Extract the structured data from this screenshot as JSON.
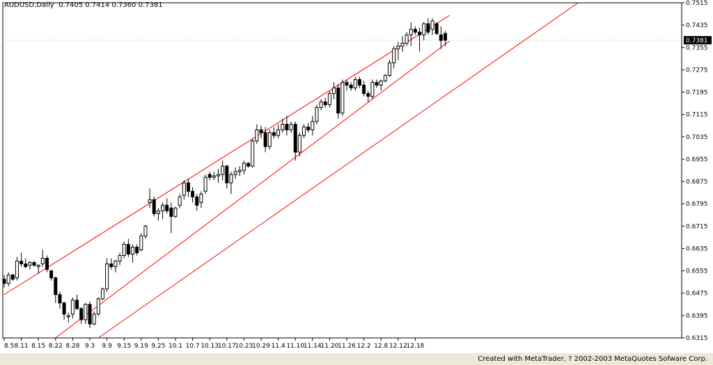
{
  "header": {
    "symbol": "AUDUSD,Daily",
    "ohlc": "0.7405 0.7414 0.7360 0.7381"
  },
  "footer": {
    "credit": "Created with MetaTrader, ? 2002-2003 MetaQuotes Sofware Corp."
  },
  "chart_data": {
    "type": "candlestick",
    "title": "AUDUSD,Daily",
    "current_price": "0.7381",
    "ylim": [
      0.6315,
      0.7515
    ],
    "y_ticks": [
      "0.7515",
      "0.7435",
      "0.7355",
      "0.7275",
      "0.7195",
      "0.7115",
      "0.7035",
      "0.6955",
      "0.6875",
      "0.6795",
      "0.6715",
      "0.6635",
      "0.6555",
      "0.6475",
      "0.6395",
      "0.6315"
    ],
    "x_ticks": [
      "8.5",
      "8.11",
      "8.15",
      "8.22",
      "8.28",
      "9.3",
      "9.9",
      "9.15",
      "9.19",
      "9.25",
      "10.1",
      "10.7",
      "10.13",
      "10.17",
      "10.23",
      "10.29",
      "11.4",
      "11.10",
      "11.14",
      "11.20",
      "11.26",
      "12.2",
      "12.8",
      "12.12",
      "12.18"
    ],
    "grid": false,
    "colors": {
      "bull": "#ffffff",
      "bear": "#000000",
      "channel": "#ff0000",
      "current_line": "#c0c0c0"
    },
    "candles": [
      [
        0.6525,
        0.654,
        0.6495,
        0.651
      ],
      [
        0.651,
        0.655,
        0.65,
        0.654
      ],
      [
        0.654,
        0.6545,
        0.652,
        0.6525
      ],
      [
        0.653,
        0.6605,
        0.652,
        0.659
      ],
      [
        0.659,
        0.662,
        0.657,
        0.658
      ],
      [
        0.658,
        0.66,
        0.6565,
        0.657
      ],
      [
        0.6575,
        0.659,
        0.656,
        0.6585
      ],
      [
        0.6585,
        0.659,
        0.657,
        0.6575
      ],
      [
        0.657,
        0.658,
        0.6545,
        0.6575
      ],
      [
        0.658,
        0.663,
        0.657,
        0.66
      ],
      [
        0.66,
        0.661,
        0.655,
        0.656
      ],
      [
        0.6555,
        0.656,
        0.652,
        0.653
      ],
      [
        0.653,
        0.6535,
        0.644,
        0.647
      ],
      [
        0.647,
        0.648,
        0.642,
        0.644
      ],
      [
        0.644,
        0.6445,
        0.638,
        0.64
      ],
      [
        0.639,
        0.6405,
        0.637,
        0.6395
      ],
      [
        0.64,
        0.646,
        0.6385,
        0.645
      ],
      [
        0.645,
        0.647,
        0.6415,
        0.642
      ],
      [
        0.642,
        0.6425,
        0.6365,
        0.638
      ],
      [
        0.638,
        0.644,
        0.6365,
        0.6435
      ],
      [
        0.6435,
        0.6445,
        0.635,
        0.6365
      ],
      [
        0.6365,
        0.641,
        0.636,
        0.64
      ],
      [
        0.64,
        0.646,
        0.6395,
        0.6455
      ],
      [
        0.6455,
        0.6495,
        0.645,
        0.649
      ],
      [
        0.649,
        0.66,
        0.648,
        0.658
      ],
      [
        0.658,
        0.66,
        0.656,
        0.657
      ],
      [
        0.657,
        0.6595,
        0.655,
        0.659
      ],
      [
        0.659,
        0.662,
        0.6575,
        0.661
      ],
      [
        0.661,
        0.666,
        0.66,
        0.665
      ],
      [
        0.665,
        0.667,
        0.6605,
        0.6615
      ],
      [
        0.6615,
        0.665,
        0.6585,
        0.664
      ],
      [
        0.664,
        0.665,
        0.661,
        0.662
      ],
      [
        0.663,
        0.669,
        0.6625,
        0.668
      ],
      [
        0.668,
        0.672,
        0.667,
        0.6715
      ],
      [
        0.68,
        0.685,
        0.678,
        0.681
      ],
      [
        0.681,
        0.682,
        0.675,
        0.676
      ],
      [
        0.676,
        0.678,
        0.6735,
        0.677
      ],
      [
        0.677,
        0.68,
        0.674,
        0.679
      ],
      [
        0.679,
        0.6815,
        0.676,
        0.677
      ],
      [
        0.678,
        0.68,
        0.669,
        0.675
      ],
      [
        0.675,
        0.6785,
        0.6745,
        0.678
      ],
      [
        0.679,
        0.683,
        0.678,
        0.682
      ],
      [
        0.6825,
        0.688,
        0.681,
        0.687
      ],
      [
        0.687,
        0.6885,
        0.682,
        0.684
      ],
      [
        0.684,
        0.6855,
        0.68,
        0.682
      ],
      [
        0.682,
        0.683,
        0.677,
        0.679
      ],
      [
        0.68,
        0.684,
        0.678,
        0.683
      ],
      [
        0.684,
        0.69,
        0.683,
        0.689
      ],
      [
        0.69,
        0.691,
        0.688,
        0.689
      ],
      [
        0.689,
        0.691,
        0.688,
        0.6895
      ],
      [
        0.6895,
        0.692,
        0.687,
        0.69
      ],
      [
        0.69,
        0.695,
        0.688,
        0.693
      ],
      [
        0.693,
        0.6935,
        0.685,
        0.687
      ],
      [
        0.687,
        0.691,
        0.683,
        0.69
      ],
      [
        0.69,
        0.6925,
        0.6885,
        0.691
      ],
      [
        0.691,
        0.693,
        0.6895,
        0.6915
      ],
      [
        0.6915,
        0.695,
        0.69,
        0.694
      ],
      [
        0.694,
        0.6945,
        0.6925,
        0.693
      ],
      [
        0.693,
        0.703,
        0.6925,
        0.702
      ],
      [
        0.702,
        0.708,
        0.701,
        0.706
      ],
      [
        0.706,
        0.7075,
        0.703,
        0.705
      ],
      [
        0.705,
        0.707,
        0.698,
        0.7
      ],
      [
        0.7,
        0.706,
        0.699,
        0.705
      ],
      [
        0.705,
        0.707,
        0.703,
        0.704
      ],
      [
        0.704,
        0.708,
        0.703,
        0.706
      ],
      [
        0.706,
        0.71,
        0.705,
        0.708
      ],
      [
        0.708,
        0.711,
        0.704,
        0.706
      ],
      [
        0.706,
        0.709,
        0.705,
        0.708
      ],
      [
        0.708,
        0.709,
        0.695,
        0.698
      ],
      [
        0.698,
        0.705,
        0.6965,
        0.704
      ],
      [
        0.704,
        0.708,
        0.703,
        0.707
      ],
      [
        0.707,
        0.7085,
        0.705,
        0.706
      ],
      [
        0.706,
        0.711,
        0.704,
        0.709
      ],
      [
        0.709,
        0.715,
        0.708,
        0.714
      ],
      [
        0.714,
        0.717,
        0.713,
        0.716
      ],
      [
        0.716,
        0.7175,
        0.714,
        0.715
      ],
      [
        0.715,
        0.72,
        0.714,
        0.719
      ],
      [
        0.719,
        0.723,
        0.717,
        0.721
      ],
      [
        0.721,
        0.7225,
        0.71,
        0.712
      ],
      [
        0.712,
        0.724,
        0.711,
        0.723
      ],
      [
        0.723,
        0.724,
        0.72,
        0.722
      ],
      [
        0.722,
        0.723,
        0.72,
        0.721
      ],
      [
        0.721,
        0.725,
        0.72,
        0.724
      ],
      [
        0.724,
        0.725,
        0.721,
        0.722
      ],
      [
        0.722,
        0.7235,
        0.718,
        0.719
      ],
      [
        0.719,
        0.72,
        0.716,
        0.718
      ],
      [
        0.718,
        0.724,
        0.717,
        0.723
      ],
      [
        0.723,
        0.724,
        0.721,
        0.722
      ],
      [
        0.722,
        0.724,
        0.72,
        0.7235
      ],
      [
        0.7235,
        0.726,
        0.723,
        0.7255
      ],
      [
        0.7255,
        0.731,
        0.725,
        0.73
      ],
      [
        0.73,
        0.736,
        0.728,
        0.735
      ],
      [
        0.735,
        0.7375,
        0.731,
        0.736
      ],
      [
        0.736,
        0.7395,
        0.734,
        0.737
      ],
      [
        0.737,
        0.741,
        0.736,
        0.74
      ],
      [
        0.74,
        0.7445,
        0.736,
        0.742
      ],
      [
        0.742,
        0.743,
        0.74,
        0.741
      ],
      [
        0.741,
        0.7425,
        0.734,
        0.74
      ],
      [
        0.74,
        0.7445,
        0.738,
        0.744
      ],
      [
        0.744,
        0.746,
        0.74,
        0.741
      ],
      [
        0.742,
        0.746,
        0.74,
        0.745
      ],
      [
        0.744,
        0.7445,
        0.74,
        0.7405
      ],
      [
        0.74,
        0.743,
        0.735,
        0.738
      ],
      [
        0.7405,
        0.7414,
        0.736,
        0.7381
      ]
    ],
    "channel_lines": [
      {
        "name": "upper",
        "points": [
          [
            0,
            0.647
          ],
          [
            104,
            0.747
          ]
        ]
      },
      {
        "name": "middle",
        "points": [
          [
            12,
            0.6315
          ],
          [
            104,
            0.7378
          ]
        ]
      },
      {
        "name": "lower",
        "points": [
          [
            22,
            0.6315
          ],
          [
            134,
            0.7515
          ]
        ]
      }
    ]
  }
}
